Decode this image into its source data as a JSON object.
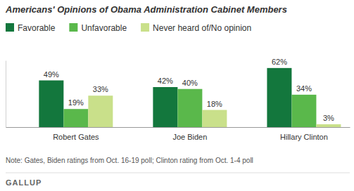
{
  "chart_data": {
    "type": "bar",
    "title": "Americans' Opinions of Obama Administration Cabinet Members",
    "categories": [
      "Robert Gates",
      "Joe Biden",
      "Hillary Clinton"
    ],
    "series": [
      {
        "name": "Favorable",
        "color": "#13773d",
        "values": [
          49,
          42,
          62
        ],
        "value_labels": [
          "49%",
          "42%",
          "62%"
        ]
      },
      {
        "name": "Unfavorable",
        "color": "#5ab84b",
        "values": [
          19,
          40,
          34
        ],
        "value_labels": [
          "19%",
          "40%",
          "34%"
        ]
      },
      {
        "name": "Never heard of/No opinion",
        "color": "#c9e08a",
        "values": [
          33,
          18,
          3
        ],
        "value_labels": [
          "33%",
          "18%",
          "3%"
        ]
      }
    ],
    "ylim": [
      0,
      70
    ],
    "data_labels": true,
    "tick_labels": "x",
    "legend": "top-left",
    "note": "Note: Gates, Biden ratings from Oct. 16-19 poll; Clinton rating from Oct. 1-4 poll",
    "source": "GALLUP"
  }
}
